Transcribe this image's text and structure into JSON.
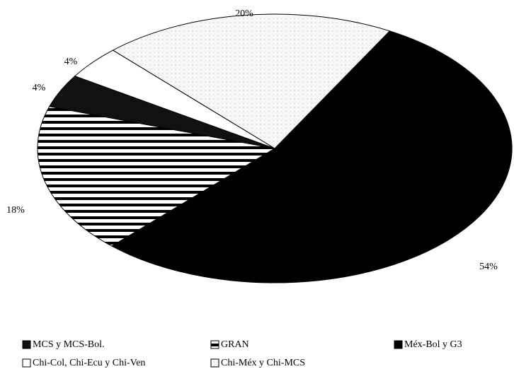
{
  "chart_data": {
    "type": "pie",
    "categories": [
      "MCS y MCS-Bol.",
      "GRAN",
      "Méx-Bol y G3",
      "Chi-Col, Chi-Ecu y Chi-Ven",
      "Chi-Méx y Chi-MCS"
    ],
    "values": [
      4,
      18,
      54,
      4,
      20
    ],
    "value_labels": [
      "4%",
      "18%",
      "54%",
      "4%",
      "20%"
    ],
    "colors": [
      "#111111",
      "#ffffff",
      "#000000",
      "#ffffff",
      "#f4f4f4"
    ],
    "patterns": [
      "solid",
      "horizontal-lines",
      "solid",
      "solid",
      "dots"
    ]
  }
}
